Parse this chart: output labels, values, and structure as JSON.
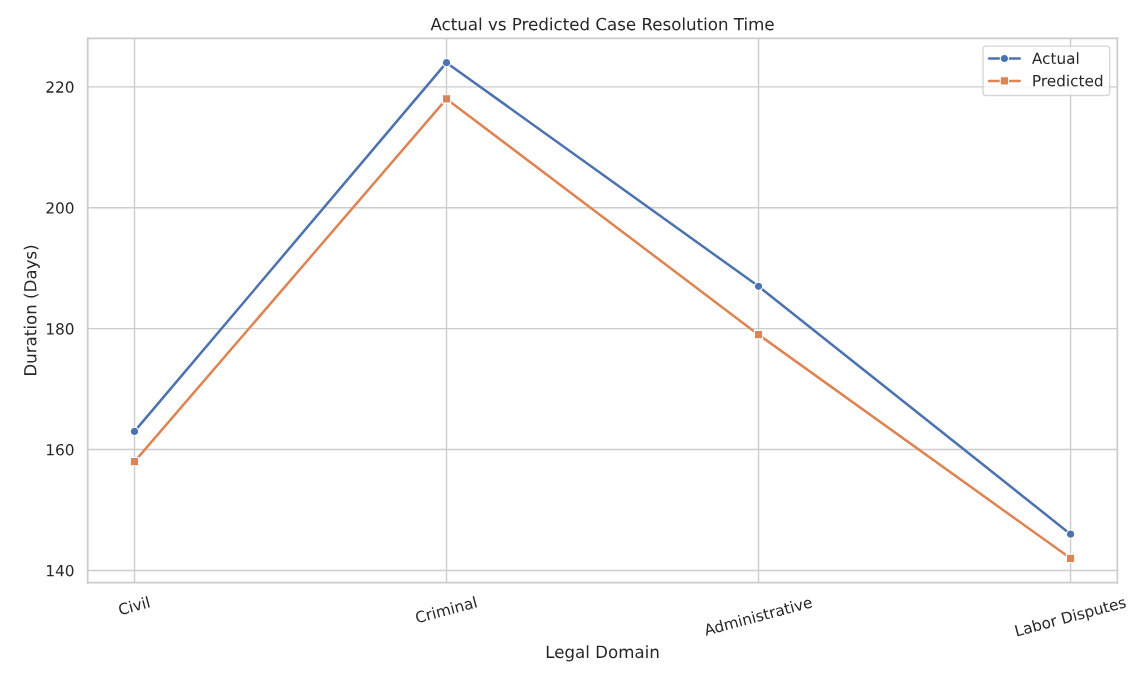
{
  "chart_data": {
    "type": "line",
    "title": "Actual vs Predicted Case Resolution Time",
    "xlabel": "Legal Domain",
    "ylabel": "Duration (Days)",
    "categories": [
      "Civil",
      "Criminal",
      "Administrative",
      "Labor Disputes"
    ],
    "series": [
      {
        "name": "Actual",
        "color": "#4c72b0",
        "values": [
          163,
          224,
          187,
          146
        ],
        "marker": "circle"
      },
      {
        "name": "Predicted",
        "color": "#dd8452",
        "values": [
          158,
          218,
          179,
          142
        ],
        "marker": "square"
      }
    ],
    "ylim": [
      138,
      228
    ],
    "yticks": [
      140,
      160,
      180,
      200,
      220
    ],
    "grid": true,
    "legend": "top right",
    "line_style": "solid"
  }
}
